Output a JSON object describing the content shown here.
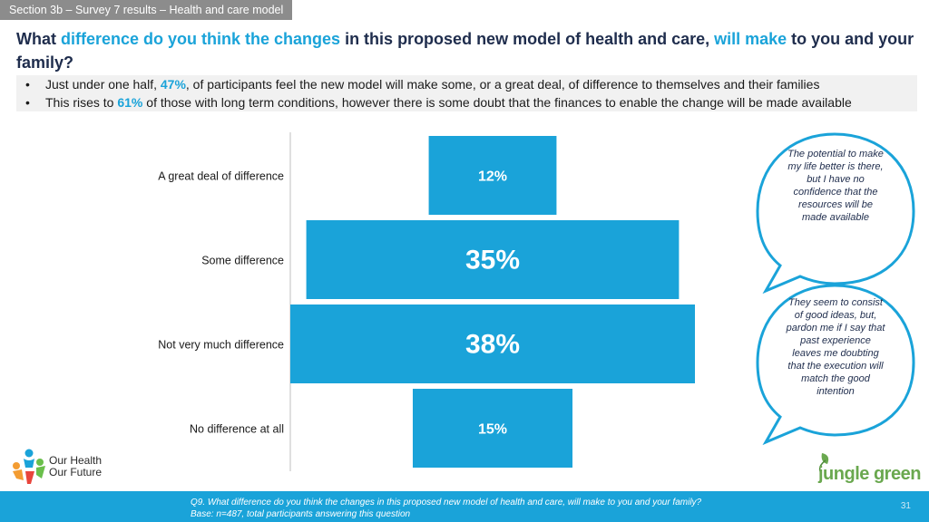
{
  "section_tab": "Section 3b – Survey 7 results – Health and care model",
  "title": {
    "p1": "What ",
    "p2": "difference do you think the changes",
    "p3": " in this proposed new model of health and care, ",
    "p4": "will make",
    "p5": " to you and your family?"
  },
  "summary": [
    {
      "pre": "Just under one half, ",
      "pct": "47%",
      "post": ", of participants feel the new model will make some, or a great deal, of difference to themselves and their families"
    },
    {
      "pre": "This rises to ",
      "pct": "61%",
      "post": " of those with long term conditions, however there is some doubt that the finances to enable the change will be made available"
    }
  ],
  "bullet_char": "•",
  "chart_data": {
    "type": "bar",
    "orientation": "horizontal-centered",
    "categories": [
      "A great deal of difference",
      "Some difference",
      "Not very much difference",
      "No difference at all"
    ],
    "values": [
      12,
      35,
      38,
      15
    ],
    "labels": [
      "12%",
      "35%",
      "38%",
      "15%"
    ],
    "units": "%",
    "xlim": [
      0,
      38
    ],
    "color": "#1aa3d9"
  },
  "quotes": [
    "The potential to make my life better is there, but I have no confidence that the resources will be made available",
    "They seem to consist of good ideas, but, pardon me if I say that past experience leaves me doubting that the execution will match the good intention"
  ],
  "logos": {
    "left_line1": "Our Health",
    "left_line2": "Our Future",
    "right": "jungle green"
  },
  "footer": {
    "question": "Q9. What difference do you think the changes in this proposed new model of health and care, will make to you and your family?",
    "base": "Base: n=487, total participants answering this question",
    "page": "31"
  }
}
